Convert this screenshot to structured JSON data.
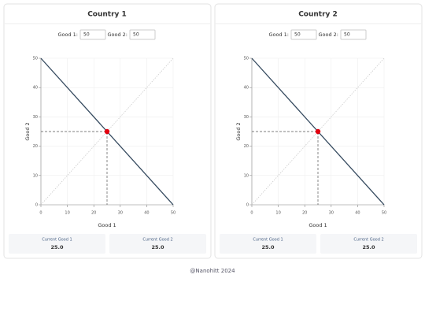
{
  "panels": [
    {
      "title": "Country 1",
      "inputs": [
        {
          "label": "Good 1:",
          "value": "50"
        },
        {
          "label": "Good 2:",
          "value": "50"
        }
      ],
      "chart_data": {
        "type": "line",
        "x": [
          0,
          50
        ],
        "xlabel": "Good 1",
        "ylabel": "Good 2",
        "series": [
          {
            "color": "#34495e",
            "values": [
              50,
              0
            ]
          },
          {
            "color": "#cccccc",
            "dash": "dotted",
            "values": [
              0,
              50
            ]
          }
        ],
        "point": {
          "x": 25,
          "y": 25,
          "color": "#e3000f"
        },
        "xlim": [
          0,
          50
        ],
        "ylim": [
          0,
          50
        ],
        "xticks": [
          0,
          10,
          20,
          30,
          40,
          50
        ],
        "yticks": [
          0,
          10,
          20,
          30,
          40,
          50
        ],
        "grid": true
      },
      "stats": [
        {
          "label": "Current Good 1",
          "value": "25.0"
        },
        {
          "label": "Current Good 2",
          "value": "25.0"
        }
      ]
    },
    {
      "title": "Country 2",
      "inputs": [
        {
          "label": "Good 1:",
          "value": "50"
        },
        {
          "label": "Good 2:",
          "value": "50"
        }
      ],
      "chart_data": {
        "type": "line",
        "x": [
          0,
          50
        ],
        "xlabel": "Good 1",
        "ylabel": "Good 2",
        "series": [
          {
            "color": "#34495e",
            "values": [
              50,
              0
            ]
          },
          {
            "color": "#cccccc",
            "dash": "dotted",
            "values": [
              0,
              50
            ]
          }
        ],
        "point": {
          "x": 25,
          "y": 25,
          "color": "#e3000f"
        },
        "xlim": [
          0,
          50
        ],
        "ylim": [
          0,
          50
        ],
        "xticks": [
          0,
          10,
          20,
          30,
          40,
          50
        ],
        "yticks": [
          0,
          10,
          20,
          30,
          40,
          50
        ],
        "grid": true
      },
      "stats": [
        {
          "label": "Current Good 1",
          "value": "25.0"
        },
        {
          "label": "Current Good 2",
          "value": "25.0"
        }
      ]
    }
  ],
  "footer": "@Nanohitt 2024"
}
